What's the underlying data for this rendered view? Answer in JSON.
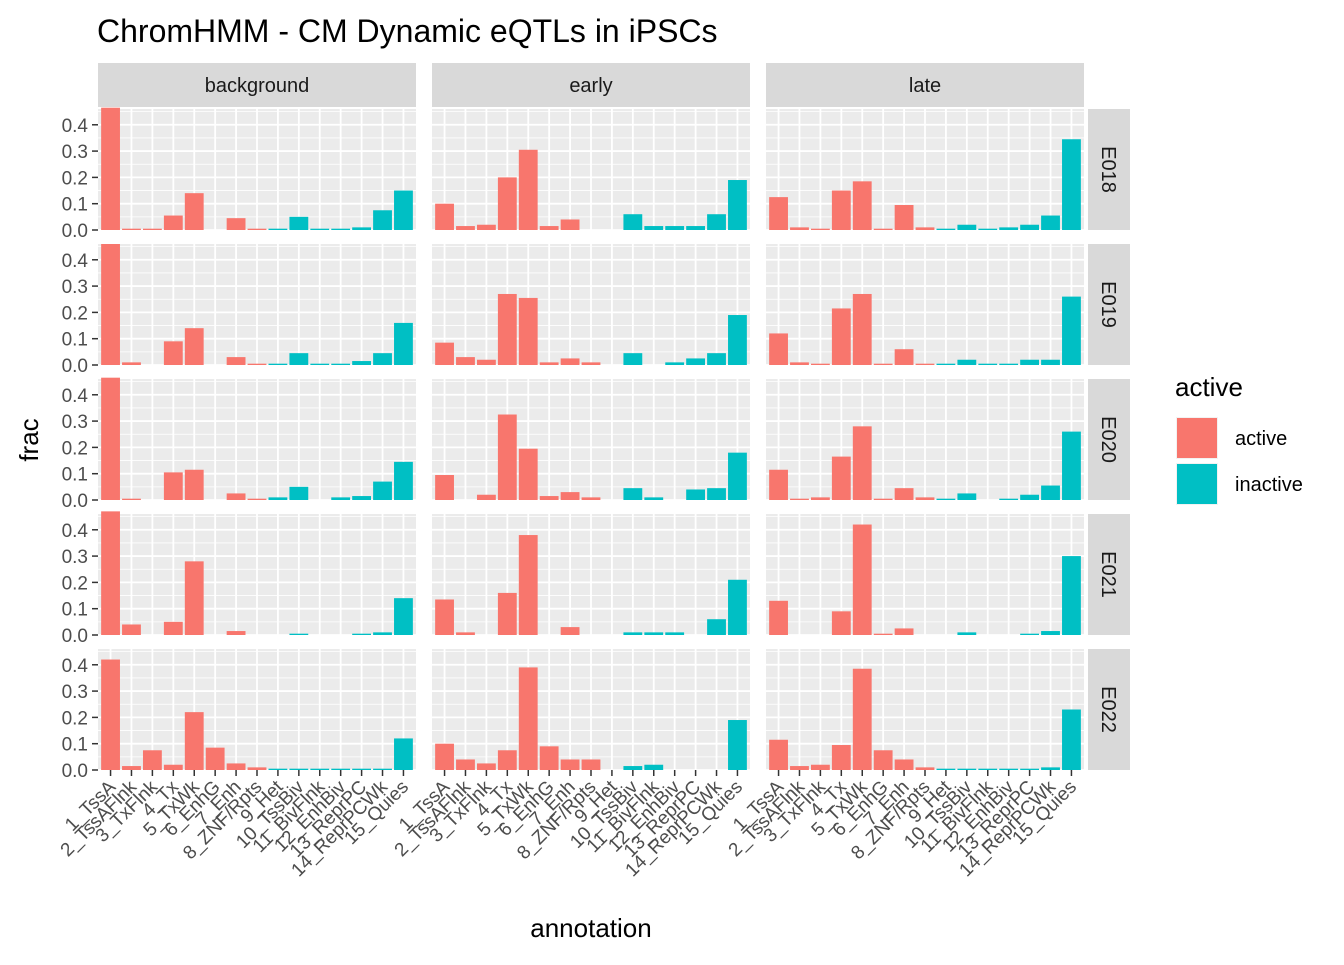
{
  "chart_data": {
    "type": "bar",
    "title": "ChromHMM - CM Dynamic eQTLs in iPSCs",
    "xlabel": "annotation",
    "ylabel": "frac",
    "ylim": [
      0,
      0.46
    ],
    "y_ticks": [
      0.0,
      0.1,
      0.2,
      0.3,
      0.4
    ],
    "y_tick_labels": [
      "0.0",
      "0.1",
      "0.2",
      "0.3",
      "0.4"
    ],
    "grid": true,
    "legend": {
      "title": "active",
      "position": "right",
      "entries": [
        {
          "label": "active",
          "color": "#F8766D"
        },
        {
          "label": "inactive",
          "color": "#00BFC4"
        }
      ]
    },
    "categories": [
      "1_TssA",
      "2_TssAFlnk",
      "3_TxFlnk",
      "4_Tx",
      "5_TxWk",
      "6_EnhG",
      "7_Enh",
      "8_ZNF/Rpts",
      "9_Het",
      "10_TssBiv",
      "11_BivFlnk",
      "12_EnhBiv",
      "13_ReprPC",
      "14_ReprPCWk",
      "15_Quies"
    ],
    "category_status": [
      "active",
      "active",
      "active",
      "active",
      "active",
      "active",
      "active",
      "active",
      "inactive",
      "inactive",
      "inactive",
      "inactive",
      "inactive",
      "inactive",
      "inactive"
    ],
    "facet_columns": [
      "background",
      "early",
      "late"
    ],
    "facet_rows": [
      "E018",
      "E019",
      "E020",
      "E021",
      "E022"
    ],
    "panels": [
      {
        "row": "E018",
        "column": "background",
        "values": [
          0.465,
          0.005,
          0.005,
          0.055,
          0.14,
          0,
          0.045,
          0.005,
          0.005,
          0.05,
          0.005,
          0.005,
          0.01,
          0.075,
          0.15
        ]
      },
      {
        "row": "E018",
        "column": "early",
        "values": [
          0.1,
          0.015,
          0.02,
          0.2,
          0.305,
          0.015,
          0.04,
          0,
          0,
          0.06,
          0.015,
          0.015,
          0.015,
          0.06,
          0.19
        ]
      },
      {
        "row": "E018",
        "column": "late",
        "values": [
          0.125,
          0.01,
          0.005,
          0.15,
          0.185,
          0.005,
          0.095,
          0.01,
          0.005,
          0.02,
          0.005,
          0.01,
          0.02,
          0.055,
          0.345
        ]
      },
      {
        "row": "E019",
        "column": "background",
        "values": [
          0.46,
          0.01,
          0,
          0.09,
          0.14,
          0,
          0.03,
          0.005,
          0.005,
          0.045,
          0.005,
          0.005,
          0.015,
          0.045,
          0.16
        ]
      },
      {
        "row": "E019",
        "column": "early",
        "values": [
          0.085,
          0.03,
          0.02,
          0.27,
          0.255,
          0.01,
          0.025,
          0.01,
          0,
          0.045,
          0,
          0.01,
          0.025,
          0.045,
          0.19
        ]
      },
      {
        "row": "E019",
        "column": "late",
        "values": [
          0.12,
          0.01,
          0.005,
          0.215,
          0.27,
          0.005,
          0.06,
          0.005,
          0.005,
          0.02,
          0.005,
          0.005,
          0.02,
          0.02,
          0.26
        ]
      },
      {
        "row": "E020",
        "column": "background",
        "values": [
          0.465,
          0.005,
          0,
          0.105,
          0.115,
          0,
          0.025,
          0.005,
          0.01,
          0.05,
          0,
          0.01,
          0.015,
          0.07,
          0.145
        ]
      },
      {
        "row": "E020",
        "column": "early",
        "values": [
          0.095,
          0,
          0.02,
          0.325,
          0.195,
          0.015,
          0.03,
          0.01,
          0,
          0.045,
          0.01,
          0,
          0.04,
          0.045,
          0.18
        ]
      },
      {
        "row": "E020",
        "column": "late",
        "values": [
          0.115,
          0.005,
          0.01,
          0.165,
          0.28,
          0.005,
          0.045,
          0.01,
          0.005,
          0.025,
          0,
          0.005,
          0.02,
          0.055,
          0.26
        ]
      },
      {
        "row": "E021",
        "column": "background",
        "values": [
          0.47,
          0.04,
          0,
          0.05,
          0.28,
          0,
          0.015,
          0,
          0,
          0.005,
          0,
          0,
          0.005,
          0.01,
          0.14
        ]
      },
      {
        "row": "E021",
        "column": "early",
        "values": [
          0.135,
          0.01,
          0,
          0.16,
          0.38,
          0,
          0.03,
          0,
          0,
          0.01,
          0.01,
          0.01,
          0,
          0.06,
          0.21
        ]
      },
      {
        "row": "E021",
        "column": "late",
        "values": [
          0.13,
          0,
          0,
          0.09,
          0.42,
          0.005,
          0.025,
          0,
          0,
          0.01,
          0,
          0,
          0.005,
          0.015,
          0.3
        ]
      },
      {
        "row": "E022",
        "column": "background",
        "values": [
          0.42,
          0.015,
          0.075,
          0.02,
          0.22,
          0.085,
          0.025,
          0.01,
          0.005,
          0.005,
          0.005,
          0.005,
          0.005,
          0.005,
          0.12
        ]
      },
      {
        "row": "E022",
        "column": "early",
        "values": [
          0.1,
          0.04,
          0.025,
          0.075,
          0.39,
          0.09,
          0.04,
          0.04,
          0,
          0.015,
          0.02,
          0,
          0,
          0,
          0.19
        ]
      },
      {
        "row": "E022",
        "column": "late",
        "values": [
          0.115,
          0.015,
          0.02,
          0.095,
          0.385,
          0.075,
          0.04,
          0.01,
          0.005,
          0.005,
          0.005,
          0.005,
          0.005,
          0.01,
          0.23
        ]
      }
    ]
  }
}
